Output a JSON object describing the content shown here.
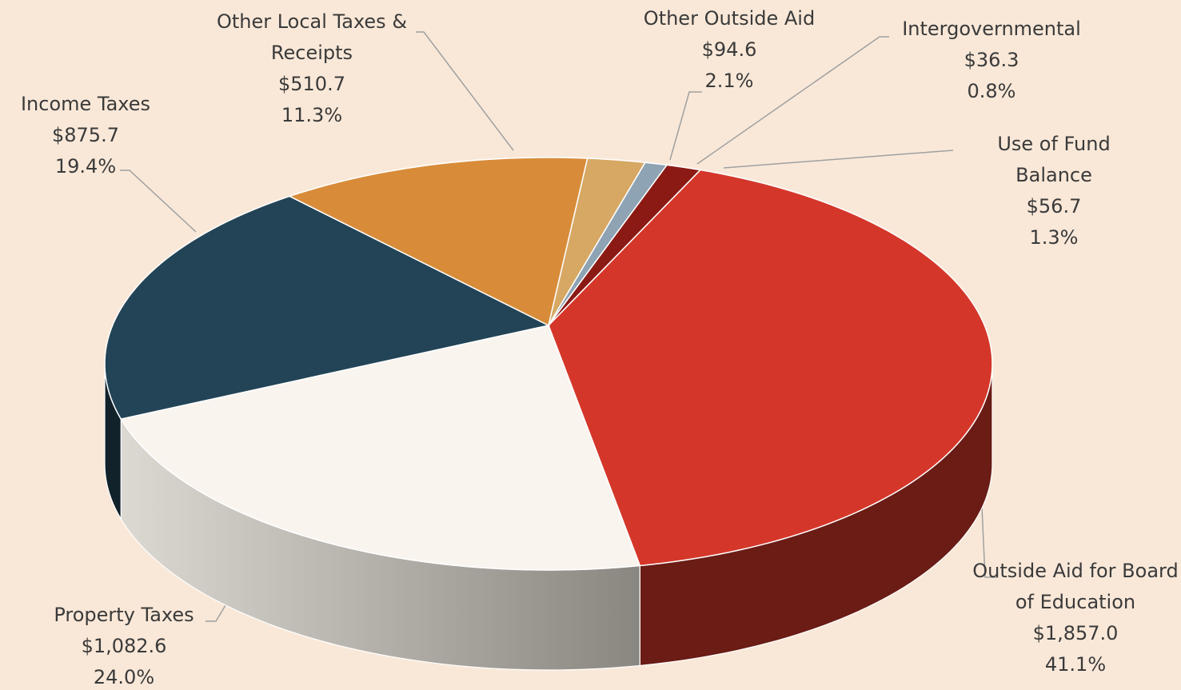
{
  "chart_data": {
    "type": "pie",
    "categories": [
      "Outside Aid for Board of Education",
      "Property Taxes",
      "Income Taxes",
      "Other Local Taxes & Receipts",
      "Other Outside Aid",
      "Intergovernmental",
      "Use of Fund Balance"
    ],
    "values": [
      1857.0,
      1082.6,
      875.7,
      510.7,
      94.6,
      36.3,
      56.7
    ],
    "value_labels": [
      "$1,857.0",
      "$1,082.6",
      "$875.7",
      "$510.7",
      "$94.6",
      "$36.3",
      "$56.7"
    ],
    "shares": [
      41.1,
      24.0,
      19.4,
      11.3,
      2.1,
      0.8,
      1.3
    ],
    "share_labels": [
      "41.1%",
      "24.0%",
      "19.4%",
      "11.3%",
      "2.1%",
      "0.8%",
      "1.3%"
    ],
    "colors": [
      "#d4372a",
      "#f9f4ee",
      "#234456",
      "#d88c39",
      "#d6a864",
      "#8ea3b3",
      "#8b1a14"
    ]
  }
}
